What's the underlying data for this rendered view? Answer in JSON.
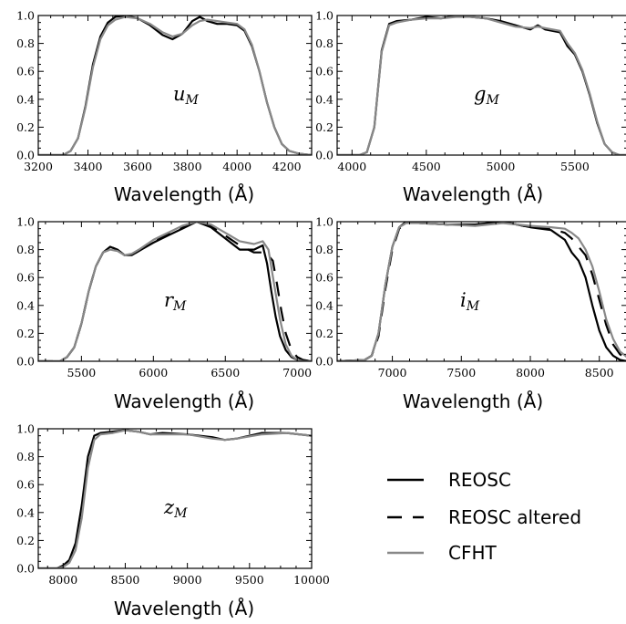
{
  "legend": {
    "items": [
      {
        "label": "REOSC",
        "color": "#000000",
        "dash": "solid"
      },
      {
        "label": "REOSC altered",
        "color": "#000000",
        "dash": "dashed"
      },
      {
        "label": "CFHT",
        "color": "#888888",
        "dash": "solid"
      }
    ]
  },
  "chart_data": [
    {
      "type": "line",
      "band": {
        "letter": "u",
        "sub": "M"
      },
      "xlabel": "Wavelength (Å)",
      "xlim": [
        3200,
        4300
      ],
      "ylim": [
        0,
        1
      ],
      "xticks": [
        3200,
        3400,
        3600,
        3800,
        4000,
        4200
      ],
      "yticks": [
        0.0,
        0.2,
        0.4,
        0.6,
        0.8,
        1.0
      ],
      "xtick_labels": [
        "3200",
        "3400",
        "3600",
        "3800",
        "4000",
        "4200"
      ],
      "ytick_labels": [
        "0.0",
        "0.2",
        "0.4",
        "0.6",
        "0.8",
        "1.0"
      ],
      "series": [
        {
          "name": "REOSC",
          "color": "#000000",
          "dash": "solid",
          "x": [
            3200,
            3300,
            3330,
            3360,
            3390,
            3420,
            3450,
            3480,
            3510,
            3550,
            3600,
            3650,
            3700,
            3740,
            3780,
            3820,
            3850,
            3880,
            3920,
            3960,
            4000,
            4030,
            4060,
            4090,
            4120,
            4150,
            4180,
            4210,
            4250,
            4300
          ],
          "y": [
            0.0,
            0.0,
            0.03,
            0.12,
            0.35,
            0.65,
            0.85,
            0.95,
            0.99,
            1.0,
            0.98,
            0.93,
            0.86,
            0.83,
            0.87,
            0.96,
            0.99,
            0.96,
            0.94,
            0.94,
            0.93,
            0.89,
            0.78,
            0.6,
            0.38,
            0.2,
            0.08,
            0.03,
            0.01,
            0.0
          ]
        },
        {
          "name": "CFHT",
          "color": "#888888",
          "dash": "solid",
          "x": [
            3200,
            3300,
            3330,
            3360,
            3390,
            3420,
            3450,
            3480,
            3510,
            3550,
            3600,
            3650,
            3700,
            3740,
            3780,
            3820,
            3850,
            3880,
            3920,
            3960,
            4000,
            4030,
            4060,
            4090,
            4120,
            4150,
            4180,
            4210,
            4250,
            4300
          ],
          "y": [
            0.0,
            0.0,
            0.03,
            0.12,
            0.34,
            0.63,
            0.83,
            0.93,
            0.97,
            0.99,
            0.98,
            0.94,
            0.88,
            0.85,
            0.87,
            0.93,
            0.96,
            0.97,
            0.96,
            0.95,
            0.94,
            0.9,
            0.79,
            0.6,
            0.38,
            0.2,
            0.08,
            0.03,
            0.01,
            0.0
          ]
        }
      ]
    },
    {
      "type": "line",
      "band": {
        "letter": "g",
        "sub": "M"
      },
      "xlabel": "Wavelength (Å)",
      "xlim": [
        3900,
        5850
      ],
      "ylim": [
        0,
        1
      ],
      "xticks": [
        4000,
        4500,
        5000,
        5500
      ],
      "yticks": [
        0.0,
        0.2,
        0.4,
        0.6,
        0.8,
        1.0
      ],
      "xtick_labels": [
        "4000",
        "4500",
        "5000",
        "5500"
      ],
      "ytick_labels": [
        "0.0",
        "0.2",
        "0.4",
        "0.6",
        "0.8",
        "1.0"
      ],
      "series": [
        {
          "name": "REOSC",
          "color": "#000000",
          "dash": "solid",
          "x": [
            3900,
            4050,
            4100,
            4150,
            4200,
            4250,
            4300,
            4400,
            4500,
            4600,
            4700,
            4800,
            4900,
            5000,
            5100,
            5200,
            5250,
            5300,
            5400,
            5450,
            5500,
            5550,
            5600,
            5650,
            5700,
            5750,
            5800,
            5850
          ],
          "y": [
            0.0,
            0.0,
            0.02,
            0.2,
            0.75,
            0.94,
            0.96,
            0.97,
            0.99,
            0.98,
            1.0,
            0.99,
            0.98,
            0.96,
            0.93,
            0.9,
            0.93,
            0.9,
            0.88,
            0.78,
            0.72,
            0.6,
            0.43,
            0.23,
            0.08,
            0.02,
            0.0,
            0.0
          ]
        },
        {
          "name": "CFHT",
          "color": "#888888",
          "dash": "solid",
          "x": [
            3900,
            4050,
            4100,
            4150,
            4200,
            4250,
            4300,
            4400,
            4500,
            4600,
            4700,
            4800,
            4900,
            5000,
            5100,
            5200,
            5250,
            5300,
            5400,
            5450,
            5500,
            5550,
            5600,
            5650,
            5700,
            5750,
            5800,
            5850
          ],
          "y": [
            0.0,
            0.0,
            0.02,
            0.2,
            0.74,
            0.93,
            0.95,
            0.97,
            0.98,
            0.98,
            0.99,
            0.99,
            0.98,
            0.95,
            0.92,
            0.91,
            0.92,
            0.91,
            0.89,
            0.8,
            0.73,
            0.61,
            0.44,
            0.24,
            0.08,
            0.02,
            0.0,
            0.0
          ]
        }
      ]
    },
    {
      "type": "line",
      "band": {
        "letter": "r",
        "sub": "M"
      },
      "xlabel": "Wavelength (Å)",
      "xlim": [
        5200,
        7100
      ],
      "ylim": [
        0,
        1
      ],
      "xticks": [
        5500,
        6000,
        6500,
        7000
      ],
      "yticks": [
        0.0,
        0.2,
        0.4,
        0.6,
        0.8,
        1.0
      ],
      "xtick_labels": [
        "5500",
        "6000",
        "6500",
        "7000"
      ],
      "ytick_labels": [
        "0.0",
        "0.2",
        "0.4",
        "0.6",
        "0.8",
        "1.0"
      ],
      "series": [
        {
          "name": "REOSC",
          "color": "#000000",
          "dash": "solid",
          "x": [
            5200,
            5350,
            5400,
            5450,
            5500,
            5550,
            5600,
            5650,
            5700,
            5750,
            5800,
            5850,
            5900,
            6000,
            6100,
            6200,
            6300,
            6400,
            6500,
            6600,
            6700,
            6760,
            6790,
            6820,
            6850,
            6880,
            6920,
            6960,
            7000,
            7100
          ],
          "y": [
            0.0,
            0.0,
            0.03,
            0.1,
            0.27,
            0.5,
            0.68,
            0.78,
            0.82,
            0.8,
            0.76,
            0.76,
            0.79,
            0.85,
            0.9,
            0.95,
            1.0,
            0.96,
            0.88,
            0.8,
            0.8,
            0.83,
            0.7,
            0.5,
            0.32,
            0.18,
            0.08,
            0.03,
            0.01,
            0.0
          ]
        },
        {
          "name": "REOSC altered",
          "color": "#000000",
          "dash": "dashed",
          "x": [
            5200,
            5350,
            5400,
            5450,
            5500,
            5550,
            5600,
            5650,
            5700,
            5750,
            5800,
            5850,
            5900,
            6000,
            6100,
            6200,
            6300,
            6400,
            6500,
            6600,
            6700,
            6780,
            6830,
            6860,
            6890,
            6920,
            6960,
            7000,
            7040,
            7100
          ],
          "y": [
            0.0,
            0.0,
            0.03,
            0.1,
            0.27,
            0.5,
            0.68,
            0.78,
            0.82,
            0.8,
            0.76,
            0.76,
            0.79,
            0.86,
            0.91,
            0.96,
            1.0,
            0.97,
            0.9,
            0.83,
            0.78,
            0.78,
            0.72,
            0.55,
            0.36,
            0.2,
            0.08,
            0.03,
            0.01,
            0.0
          ]
        },
        {
          "name": "CFHT",
          "color": "#888888",
          "dash": "solid",
          "x": [
            5200,
            5350,
            5400,
            5450,
            5500,
            5550,
            5600,
            5650,
            5700,
            5750,
            5800,
            5850,
            5900,
            6000,
            6100,
            6200,
            6300,
            6400,
            6500,
            6600,
            6700,
            6760,
            6800,
            6840,
            6880,
            6920,
            6960,
            7000,
            7040,
            7100
          ],
          "y": [
            0.0,
            0.0,
            0.03,
            0.1,
            0.27,
            0.5,
            0.68,
            0.78,
            0.8,
            0.79,
            0.76,
            0.77,
            0.8,
            0.87,
            0.92,
            0.97,
            1.0,
            0.98,
            0.92,
            0.86,
            0.84,
            0.86,
            0.8,
            0.55,
            0.3,
            0.12,
            0.04,
            0.01,
            0.0,
            0.0
          ]
        }
      ]
    },
    {
      "type": "line",
      "band": {
        "letter": "i",
        "sub": "M"
      },
      "xlabel": "Wavelength (Å)",
      "xlim": [
        6600,
        8700
      ],
      "ylim": [
        0,
        1
      ],
      "xticks": [
        7000,
        7500,
        8000,
        8500
      ],
      "yticks": [
        0.0,
        0.2,
        0.4,
        0.6,
        0.8,
        1.0
      ],
      "xtick_labels": [
        "7000",
        "7500",
        "8000",
        "8500"
      ],
      "ytick_labels": [
        "0.0",
        "0.2",
        "0.4",
        "0.6",
        "0.8",
        "1.0"
      ],
      "series": [
        {
          "name": "REOSC",
          "color": "#000000",
          "dash": "solid",
          "x": [
            6600,
            6800,
            6850,
            6900,
            6950,
            7000,
            7050,
            7100,
            7200,
            7400,
            7600,
            7800,
            8000,
            8150,
            8250,
            8300,
            8350,
            8400,
            8450,
            8500,
            8550,
            8600,
            8650,
            8700
          ],
          "y": [
            0.0,
            0.01,
            0.04,
            0.2,
            0.55,
            0.82,
            0.96,
            1.0,
            0.99,
            0.98,
            0.98,
            1.0,
            0.96,
            0.94,
            0.87,
            0.78,
            0.72,
            0.6,
            0.4,
            0.22,
            0.1,
            0.04,
            0.01,
            0.0
          ]
        },
        {
          "name": "REOSC altered",
          "color": "#000000",
          "dash": "dashed",
          "x": [
            6600,
            6800,
            6850,
            6900,
            6950,
            7000,
            7050,
            7100,
            7200,
            7400,
            7600,
            7800,
            8000,
            8150,
            8250,
            8300,
            8350,
            8400,
            8450,
            8500,
            8550,
            8600,
            8650,
            8700
          ],
          "y": [
            0.0,
            0.01,
            0.04,
            0.18,
            0.52,
            0.8,
            0.95,
            1.0,
            0.99,
            0.98,
            0.98,
            1.0,
            0.96,
            0.95,
            0.92,
            0.88,
            0.82,
            0.76,
            0.62,
            0.44,
            0.26,
            0.12,
            0.05,
            0.02
          ]
        },
        {
          "name": "CFHT",
          "color": "#888888",
          "dash": "solid",
          "x": [
            6600,
            6800,
            6850,
            6900,
            6950,
            7000,
            7050,
            7100,
            7200,
            7400,
            7600,
            7800,
            8000,
            8150,
            8250,
            8300,
            8350,
            8400,
            8450,
            8500,
            8550,
            8600,
            8650,
            8700
          ],
          "y": [
            0.0,
            0.01,
            0.04,
            0.2,
            0.55,
            0.82,
            0.96,
            0.99,
            0.99,
            0.98,
            0.97,
            0.99,
            0.97,
            0.96,
            0.95,
            0.92,
            0.88,
            0.8,
            0.68,
            0.5,
            0.3,
            0.16,
            0.07,
            0.03
          ]
        }
      ]
    },
    {
      "type": "line",
      "band": {
        "letter": "z",
        "sub": "M"
      },
      "xlabel": "Wavelength (Å)",
      "xlim": [
        7800,
        10000
      ],
      "ylim": [
        0,
        1
      ],
      "xticks": [
        8000,
        8500,
        9000,
        9500,
        10000
      ],
      "yticks": [
        0.0,
        0.2,
        0.4,
        0.6,
        0.8,
        1.0
      ],
      "xtick_labels": [
        "8000",
        "8500",
        "9000",
        "9500",
        "10000"
      ],
      "ytick_labels": [
        "0.0",
        "0.2",
        "0.4",
        "0.6",
        "0.8",
        "1.0"
      ],
      "series": [
        {
          "name": "REOSC",
          "color": "#000000",
          "dash": "solid",
          "x": [
            7800,
            7950,
            8000,
            8050,
            8100,
            8150,
            8200,
            8250,
            8300,
            8400,
            8500,
            8600,
            8700,
            8800,
            9000,
            9200,
            9300,
            9400,
            9600,
            9800,
            10000
          ],
          "y": [
            0.0,
            0.0,
            0.02,
            0.06,
            0.18,
            0.45,
            0.8,
            0.95,
            0.97,
            0.98,
            0.99,
            0.98,
            0.96,
            0.97,
            0.96,
            0.94,
            0.92,
            0.93,
            0.97,
            0.97,
            0.95
          ]
        },
        {
          "name": "CFHT",
          "color": "#888888",
          "dash": "solid",
          "x": [
            7800,
            7950,
            8000,
            8050,
            8100,
            8150,
            8200,
            8250,
            8300,
            8400,
            8500,
            8600,
            8700,
            8800,
            9000,
            9200,
            9300,
            9400,
            9600,
            9800,
            10000
          ],
          "y": [
            0.0,
            0.0,
            0.01,
            0.04,
            0.13,
            0.36,
            0.72,
            0.92,
            0.96,
            0.97,
            0.99,
            0.98,
            0.96,
            0.96,
            0.96,
            0.93,
            0.92,
            0.93,
            0.96,
            0.97,
            0.95
          ]
        }
      ]
    }
  ]
}
